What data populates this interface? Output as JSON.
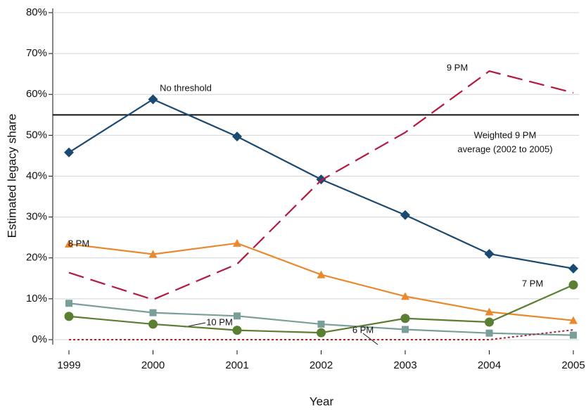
{
  "chart_data": {
    "type": "line",
    "x_label": "Year",
    "y_label": "Estimated legacy share",
    "x": [
      1999,
      2000,
      2001,
      2002,
      2003,
      2004,
      2005
    ],
    "xlim": [
      1999,
      2005
    ],
    "xticks": [
      1999,
      2000,
      2001,
      2002,
      2003,
      2004,
      2005
    ],
    "ylim": [
      0,
      80
    ],
    "yticks": [
      {
        "value": 0,
        "label": "0%"
      },
      {
        "value": 10,
        "label": "10%"
      },
      {
        "value": 20,
        "label": "20%"
      },
      {
        "value": 30,
        "label": "30%"
      },
      {
        "value": 40,
        "label": "40%"
      },
      {
        "value": 50,
        "label": "50%"
      },
      {
        "value": 60,
        "label": "60%"
      },
      {
        "value": 70,
        "label": "70%"
      },
      {
        "value": 80,
        "label": "80%"
      }
    ],
    "grid": true,
    "reference_line": {
      "value": 55,
      "label": [
        "Weighted 9 PM",
        "average (2002 to 2005)"
      ],
      "color": "#111111"
    },
    "series": [
      {
        "name": "No threshold",
        "color": "#1a4a72",
        "marker": "diamond",
        "dash": "solid",
        "values": [
          45.8,
          58.8,
          49.7,
          39.2,
          30.5,
          21.0,
          17.4
        ]
      },
      {
        "name": "9 PM",
        "color": "#b5193f",
        "marker": "none",
        "dash": "dashed",
        "values": [
          16.4,
          9.8,
          18.5,
          39.0,
          50.7,
          65.7,
          60.4
        ]
      },
      {
        "name": "8 PM",
        "color": "#e8892e",
        "marker": "triangle",
        "dash": "solid",
        "values": [
          23.4,
          20.9,
          23.6,
          15.9,
          10.6,
          6.8,
          4.7
        ]
      },
      {
        "name": "10 PM",
        "color": "#7a9e9a",
        "marker": "square",
        "dash": "solid",
        "values": [
          8.9,
          6.6,
          5.8,
          3.8,
          2.5,
          1.6,
          1.1
        ]
      },
      {
        "name": "7 PM",
        "color": "#5a7e32",
        "marker": "circle",
        "dash": "solid",
        "values": [
          5.7,
          3.8,
          2.3,
          1.7,
          5.2,
          4.3,
          13.4
        ]
      },
      {
        "name": "6 PM",
        "color": "#a3283a",
        "marker": "none",
        "dash": "dotted",
        "values": [
          0,
          0,
          0,
          0,
          0,
          0,
          2.4
        ]
      }
    ]
  }
}
